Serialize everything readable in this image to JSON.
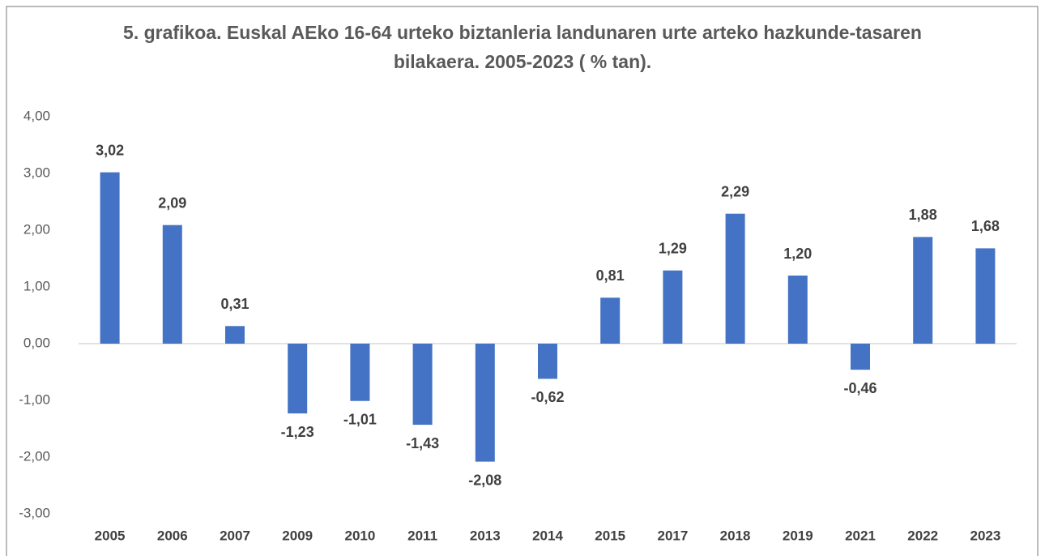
{
  "chart_data": {
    "type": "bar",
    "title": "5. grafikoa. Euskal AEko 16-64 urteko biztanleria landunaren urte arteko hazkunde-tasaren bilakaera. 2005-2023 ( % tan).",
    "categories": [
      "2005",
      "2006",
      "2007",
      "2009",
      "2010",
      "2011",
      "2013",
      "2014",
      "2015",
      "2017",
      "2018",
      "2019",
      "2021",
      "2022",
      "2023"
    ],
    "values": [
      3.02,
      2.09,
      0.31,
      -1.23,
      -1.01,
      -1.43,
      -2.08,
      -0.62,
      0.81,
      1.29,
      2.29,
      1.2,
      -0.46,
      1.88,
      1.68
    ],
    "value_labels": [
      "3,02",
      "2,09",
      "0,31",
      "-1,23",
      "-1,01",
      "-1,43",
      "-2,08",
      "-0,62",
      "0,81",
      "1,29",
      "2,29",
      "1,20",
      "-0,46",
      "1,88",
      "1,68"
    ],
    "color": "#4472c4",
    "ylim": [
      -3,
      4
    ],
    "yticks": [
      {
        "value": -3,
        "label": "-3,00"
      },
      {
        "value": -2,
        "label": "-2,00"
      },
      {
        "value": -1,
        "label": "-1,00"
      },
      {
        "value": 0,
        "label": "0,00"
      },
      {
        "value": 1,
        "label": "1,00"
      },
      {
        "value": 2,
        "label": "2,00"
      },
      {
        "value": 3,
        "label": "3,00"
      },
      {
        "value": 4,
        "label": "4,00"
      }
    ],
    "grid": false
  }
}
